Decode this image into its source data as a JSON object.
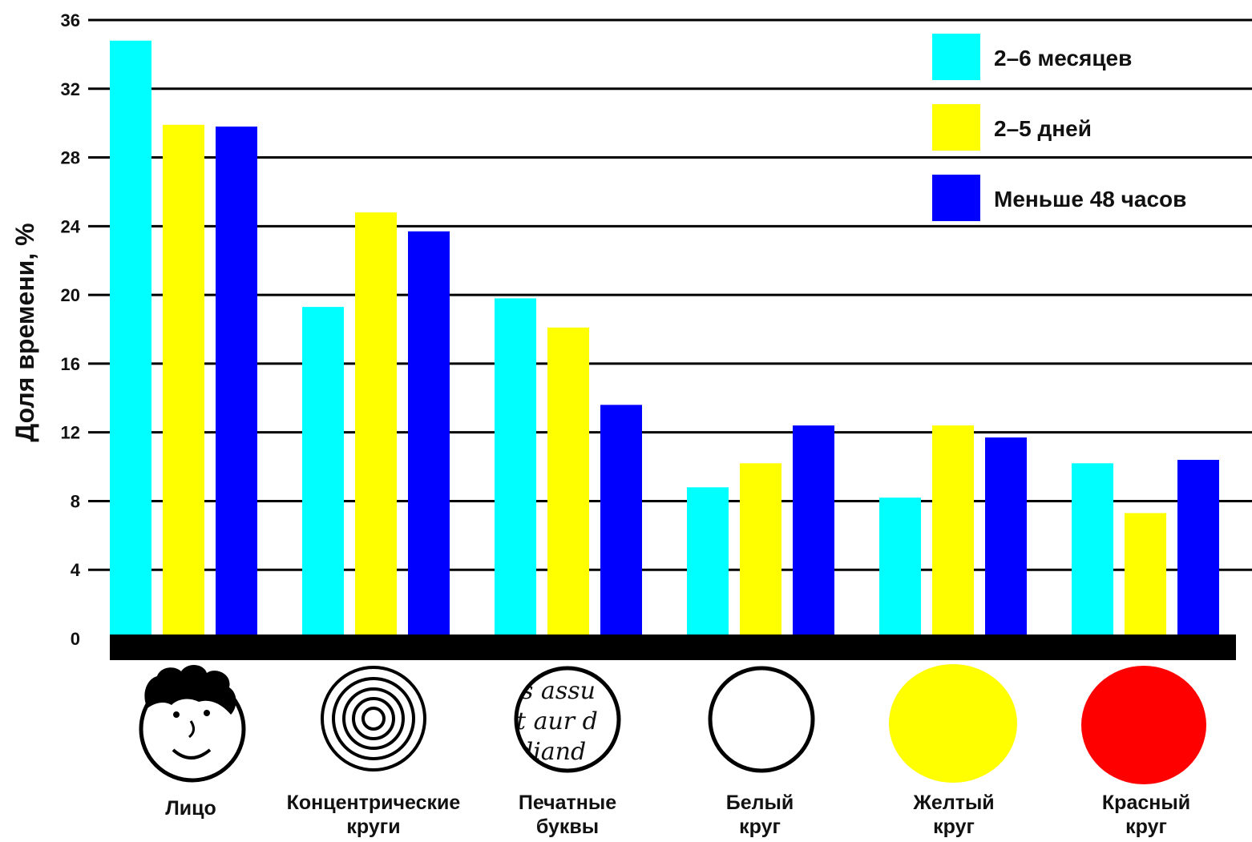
{
  "chart_data": {
    "type": "bar",
    "ylabel": "Доля времени, %",
    "ylim": [
      0,
      36
    ],
    "yticks": [
      0,
      4,
      8,
      12,
      16,
      20,
      24,
      28,
      32,
      36
    ],
    "grid": true,
    "legend_position": "top-right",
    "categories": [
      [
        "Лицо"
      ],
      [
        "Концентрические",
        "круги"
      ],
      [
        "Печатные",
        "буквы"
      ],
      [
        "Белый",
        "круг"
      ],
      [
        "Желтый",
        "круг"
      ],
      [
        "Красный",
        "круг"
      ]
    ],
    "series": [
      {
        "name": "2–6 месяцев",
        "color": "#00ffff",
        "values": [
          34.8,
          19.3,
          19.8,
          8.8,
          8.2,
          10.2
        ]
      },
      {
        "name": "2–5 дней",
        "color": "#ffff00",
        "values": [
          29.9,
          24.8,
          18.1,
          10.2,
          12.4,
          7.3
        ]
      },
      {
        "name": "Меньше 48 часов",
        "color": "#0000ff",
        "values": [
          29.8,
          23.7,
          13.6,
          12.4,
          11.7,
          10.4
        ]
      }
    ]
  },
  "stimuli": [
    {
      "icon": "face-icon"
    },
    {
      "icon": "concentric-circles-icon"
    },
    {
      "icon": "printed-letters-icon",
      "text_lines": [
        "s assu",
        "t aur d",
        "diand"
      ]
    },
    {
      "icon": "white-circle-icon",
      "color": "#ffffff"
    },
    {
      "icon": "yellow-circle-icon",
      "color": "#ffff00"
    },
    {
      "icon": "red-circle-icon",
      "color": "#ff0000"
    }
  ]
}
